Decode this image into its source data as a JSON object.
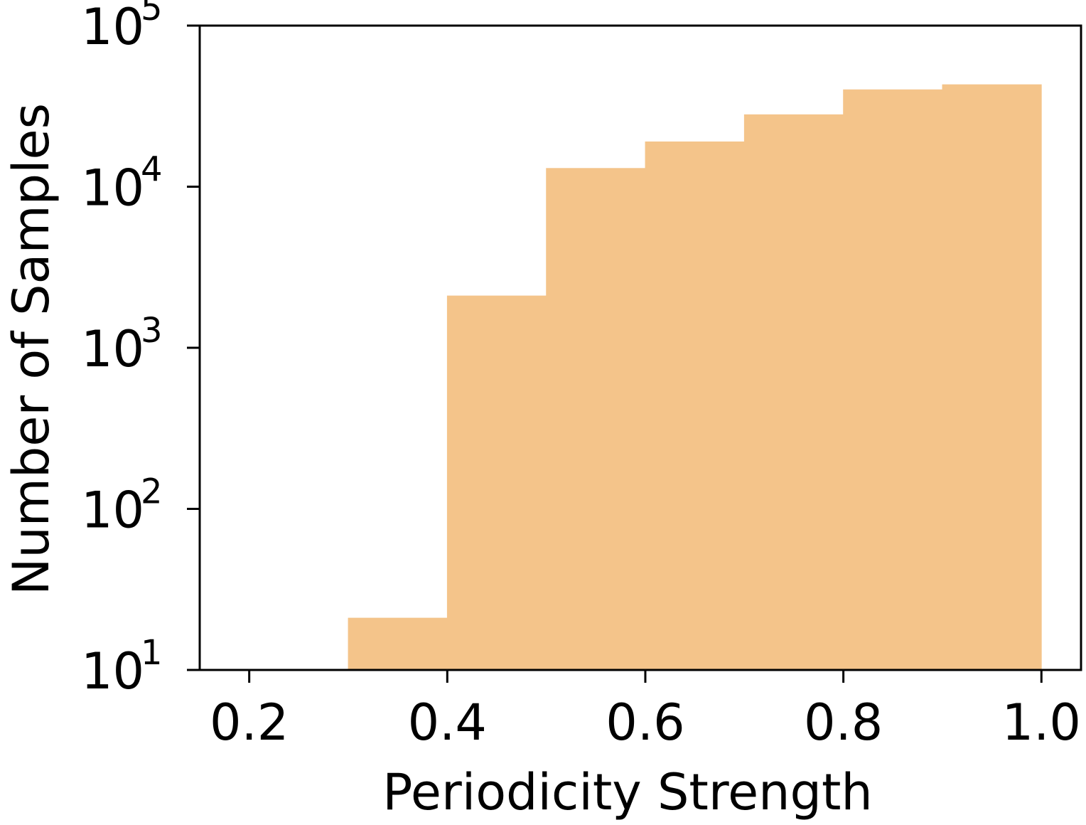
{
  "chart_data": {
    "type": "bar",
    "subtype": "histogram",
    "title": "",
    "xlabel": "Periodicity Strength",
    "ylabel": "Number of Samples",
    "yscale": "log",
    "xlim": [
      0.15,
      1.04
    ],
    "ylim": [
      10,
      100000
    ],
    "grid": false,
    "bar_color": "#f4c48a",
    "bins": [
      {
        "x0": 0.3,
        "x1": 0.4,
        "value": 21
      },
      {
        "x0": 0.4,
        "x1": 0.5,
        "value": 2100
      },
      {
        "x0": 0.5,
        "x1": 0.6,
        "value": 13000
      },
      {
        "x0": 0.6,
        "x1": 0.7,
        "value": 19000
      },
      {
        "x0": 0.7,
        "x1": 0.8,
        "value": 28000
      },
      {
        "x0": 0.8,
        "x1": 0.9,
        "value": 40000
      },
      {
        "x0": 0.9,
        "x1": 1.0,
        "value": 43000
      }
    ],
    "x_ticks": [
      {
        "value": 0.2,
        "label": "0.2"
      },
      {
        "value": 0.4,
        "label": "0.4"
      },
      {
        "value": 0.6,
        "label": "0.6"
      },
      {
        "value": 0.8,
        "label": "0.8"
      },
      {
        "value": 1.0,
        "label": "1.0"
      }
    ],
    "y_ticks": [
      {
        "value": 10,
        "base": "10",
        "exp": "1"
      },
      {
        "value": 100,
        "base": "10",
        "exp": "2"
      },
      {
        "value": 1000,
        "base": "10",
        "exp": "3"
      },
      {
        "value": 10000,
        "base": "10",
        "exp": "4"
      },
      {
        "value": 100000,
        "base": "10",
        "exp": "5"
      }
    ]
  }
}
